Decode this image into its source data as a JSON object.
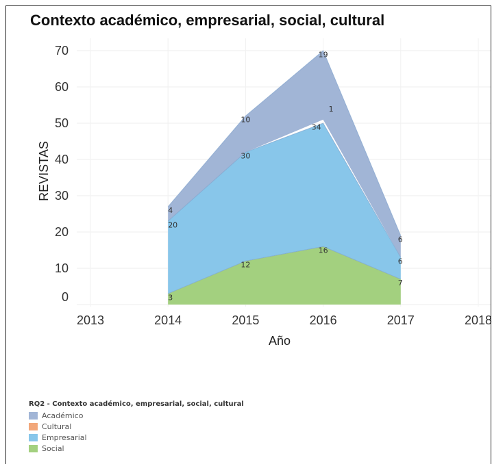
{
  "chart_data": {
    "type": "area",
    "title": "Contexto académico, empresarial, social, cultural",
    "xlabel": "Año",
    "ylabel": "REVISTAS",
    "x": [
      2014,
      2015,
      2016,
      2017
    ],
    "x_ticks": [
      2013,
      2014,
      2015,
      2016,
      2017,
      2018
    ],
    "y_ticks": [
      0,
      10,
      20,
      30,
      40,
      50,
      60,
      70
    ],
    "xlim": [
      2013,
      2018
    ],
    "ylim": [
      0,
      70
    ],
    "stacked": true,
    "grid": true,
    "legend_title": "RQ2 - Contexto académico, empresarial, social, cultural",
    "legend_position": "bottom-left",
    "series": [
      {
        "name": "Social",
        "color": "#a3d07f",
        "values": [
          3,
          12,
          16,
          7
        ]
      },
      {
        "name": "Empresarial",
        "color": "#88c6ea",
        "values": [
          20,
          30,
          34,
          6
        ]
      },
      {
        "name": "Cultural",
        "color": "#f2a77a",
        "values": [
          0,
          0,
          1,
          0
        ]
      },
      {
        "name": "Académico",
        "color": "#a1b5d6",
        "values": [
          4,
          10,
          19,
          6
        ]
      }
    ],
    "legend_order": [
      "Académico",
      "Cultural",
      "Empresarial",
      "Social"
    ],
    "data_labels": [
      {
        "series": "Social",
        "x": 2014,
        "text": "3"
      },
      {
        "series": "Social",
        "x": 2015,
        "text": "12"
      },
      {
        "series": "Social",
        "x": 2016,
        "text": "16"
      },
      {
        "series": "Social",
        "x": 2017,
        "text": "7"
      },
      {
        "series": "Empresarial",
        "x": 2014,
        "text": "20"
      },
      {
        "series": "Empresarial",
        "x": 2015,
        "text": "30"
      },
      {
        "series": "Empresarial",
        "x": 2016,
        "text": "34"
      },
      {
        "series": "Empresarial",
        "x": 2017,
        "text": "6"
      },
      {
        "series": "Cultural",
        "x": 2016,
        "text": "1"
      },
      {
        "series": "Académico",
        "x": 2014,
        "text": "4"
      },
      {
        "series": "Académico",
        "x": 2015,
        "text": "10"
      },
      {
        "series": "Académico",
        "x": 2016,
        "text": "19"
      },
      {
        "series": "Académico",
        "x": 2017,
        "text": "6"
      }
    ]
  }
}
